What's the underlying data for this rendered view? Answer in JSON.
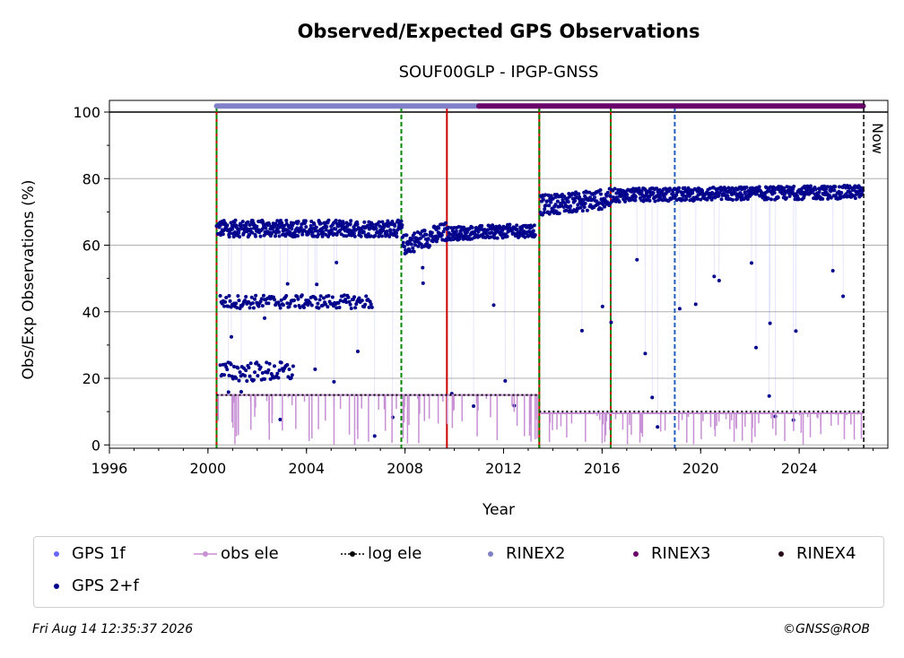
{
  "chart_data": {
    "type": "scatter",
    "title": "Observed/Expected GPS Observations",
    "subtitle": "SOUF00GLP - IPGP-GNSS",
    "xlabel": "Year",
    "ylabel": "Obs/Exp Observations (%)",
    "xlim": [
      1996,
      2027.6
    ],
    "ylim": [
      -1,
      103.5
    ],
    "xticks": [
      "1996",
      "2000",
      "2004",
      "2008",
      "2012",
      "2016",
      "2020",
      "2024"
    ],
    "yticks": [
      "0",
      "20",
      "40",
      "60",
      "80",
      "100"
    ],
    "grid": "horizontal",
    "now_label": "Now",
    "now_year": 26.62,
    "vertical_markers": [
      {
        "year": 2000.35,
        "color": "#cc0000",
        "style": "solid"
      },
      {
        "year": 2000.35,
        "color": "#008800",
        "style": "dashed"
      },
      {
        "year": 2007.85,
        "color": "#008800",
        "style": "dashed"
      },
      {
        "year": 2009.7,
        "color": "#cc0000",
        "style": "solid"
      },
      {
        "year": 2013.45,
        "color": "#cc0000",
        "style": "solid"
      },
      {
        "year": 2013.45,
        "color": "#008800",
        "style": "dashed"
      },
      {
        "year": 2016.35,
        "color": "#cc0000",
        "style": "solid"
      },
      {
        "year": 2016.35,
        "color": "#008800",
        "style": "dashed"
      },
      {
        "year": 2018.95,
        "color": "#1f5fbf",
        "style": "dashed"
      }
    ],
    "series": [
      {
        "name": "GPS 2+f",
        "color": "#00008b",
        "segments": [
          {
            "x0": 2000.35,
            "x1": 2007.9,
            "base": 65,
            "spread": 2.5,
            "trend": 0
          },
          {
            "x0": 2007.9,
            "x1": 2009.7,
            "base": 62,
            "spread": 3,
            "trend": 4
          },
          {
            "x0": 2009.7,
            "x1": 2013.3,
            "base": 64,
            "spread": 2,
            "trend": 1
          },
          {
            "x0": 2013.5,
            "x1": 2016.35,
            "base": 73,
            "spread": 3,
            "trend": 2
          },
          {
            "x0": 2016.35,
            "x1": 2026.6,
            "base": 75.5,
            "spread": 2,
            "trend": 1
          }
        ],
        "secondary_band": {
          "x0": 2000.5,
          "x1": 2006.7,
          "y": 43,
          "spread": 2
        },
        "low_band": {
          "x0": 2000.5,
          "x1": 2003.5,
          "y": 22,
          "spread": 3
        }
      },
      {
        "name": "obs ele",
        "color": "#c78fd4",
        "segments": [
          {
            "x0": 2000.35,
            "x1": 2013.4,
            "y": 15
          },
          {
            "x0": 2013.5,
            "x1": 2026.6,
            "y": 9.5
          }
        ]
      },
      {
        "name": "log ele",
        "color": "#000000",
        "segments": [
          {
            "x0": 2000.35,
            "x1": 2013.45,
            "y": 15
          },
          {
            "x0": 2013.45,
            "x1": 2026.6,
            "y": 10
          }
        ]
      },
      {
        "name": "RINEX2",
        "color": "#8080c8",
        "x0": 2000.35,
        "x1": 2011.0,
        "y": 101.8
      },
      {
        "name": "RINEX3",
        "color": "#6a006a",
        "x0": 2011.0,
        "x1": 2026.6,
        "y": 101.8
      }
    ]
  },
  "legend": {
    "items": [
      {
        "label": "GPS 1f",
        "color": "#6666ff",
        "kind": "dot"
      },
      {
        "label": "obs ele",
        "color": "#c78fd4",
        "kind": "line-dot"
      },
      {
        "label": "log ele",
        "color": "#000000",
        "kind": "dotted"
      },
      {
        "label": "RINEX2",
        "color": "#8080c8",
        "kind": "dot"
      },
      {
        "label": "RINEX3",
        "color": "#6a006a",
        "kind": "dot"
      },
      {
        "label": "RINEX4",
        "color": "#2a0a1a",
        "kind": "dot"
      },
      {
        "label": "GPS 2+f",
        "color": "#00008b",
        "kind": "dot"
      }
    ]
  },
  "footer": {
    "timestamp": "Fri Aug 14 12:35:37 2026",
    "credit": "©GNSS@ROB"
  }
}
